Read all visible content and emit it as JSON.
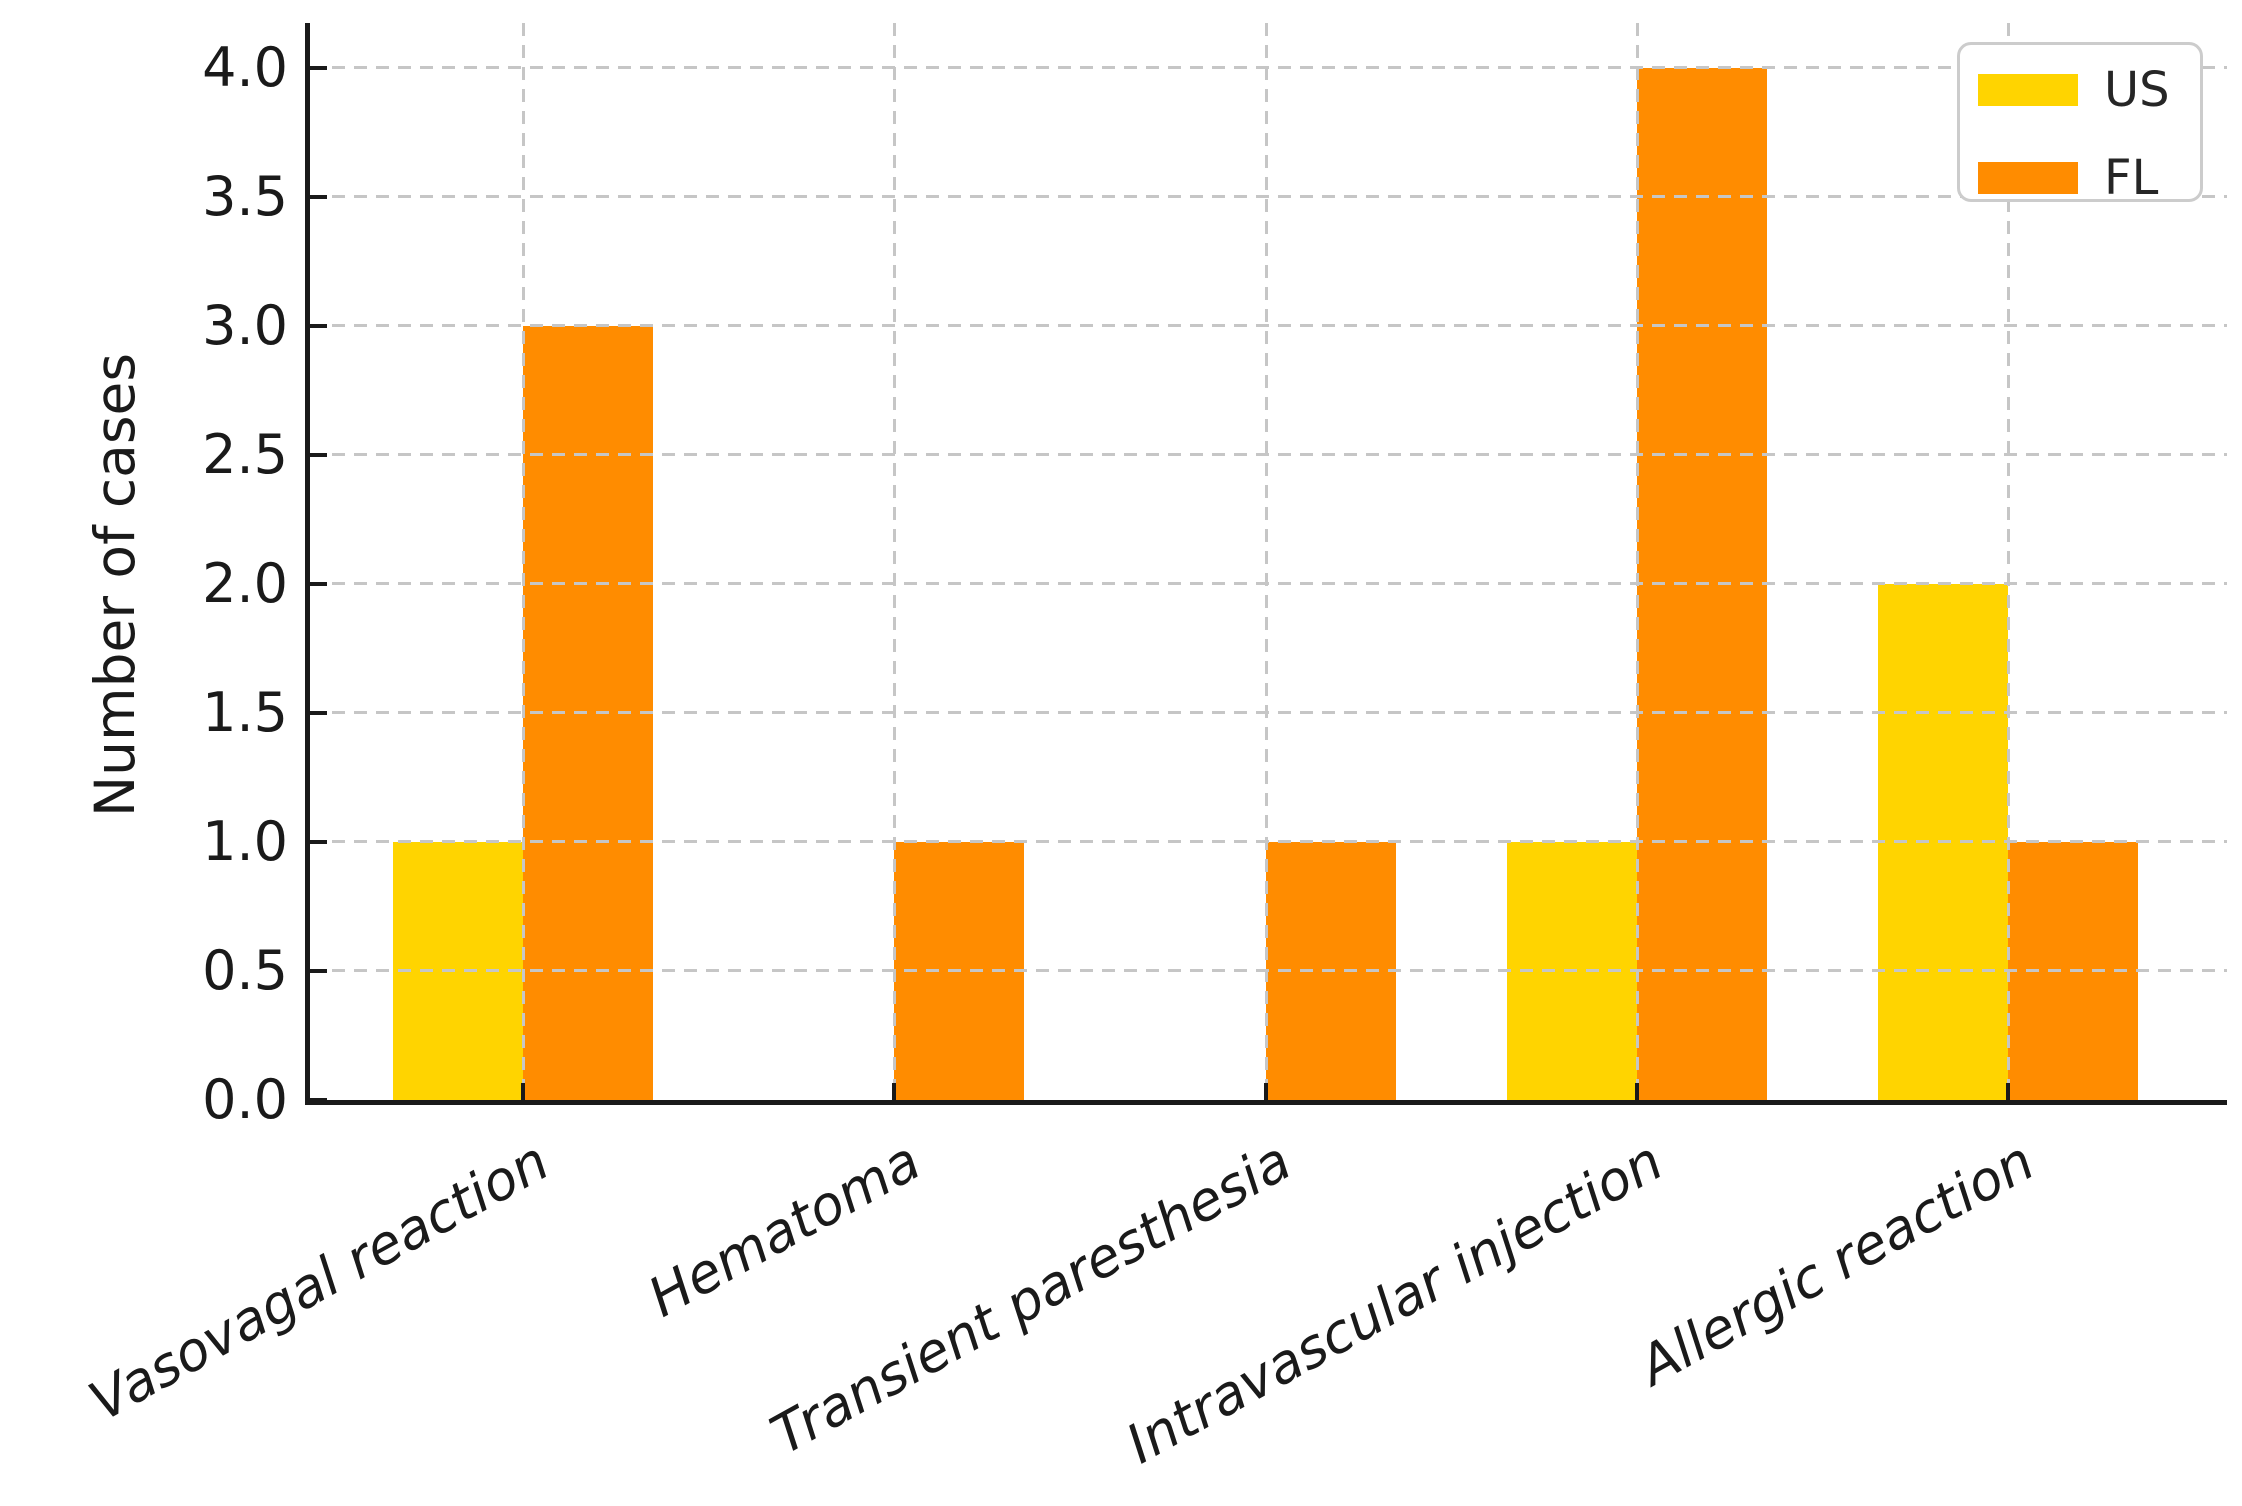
{
  "chart_data": {
    "type": "bar",
    "title": "",
    "xlabel": "",
    "ylabel": "Number of cases",
    "categories": [
      "Vasovagal reaction",
      "Hematoma",
      "Transient paresthesia",
      "Intravascular injection",
      "Allergic reaction"
    ],
    "series": [
      {
        "name": "US",
        "color": "#FFD400",
        "values": [
          1,
          0,
          0,
          1,
          2
        ]
      },
      {
        "name": "FL",
        "color": "#FF8C00",
        "values": [
          3,
          1,
          1,
          4,
          1
        ]
      }
    ],
    "ylim": [
      0,
      4.17
    ],
    "yticks": [
      "0.0",
      "0.5",
      "1.0",
      "1.5",
      "2.0",
      "2.5",
      "3.0",
      "3.5",
      "4.0"
    ],
    "grid": "dashed, drawn above bars",
    "grid_color": "#c6c6c6",
    "axis_color": "#1a1a1a",
    "legend_position": "upper right",
    "legend_entries": [
      "US",
      "FL"
    ],
    "x_tick_label_style": "italic",
    "x_tick_rotation_deg": 29,
    "bar_width_units": 0.35
  }
}
